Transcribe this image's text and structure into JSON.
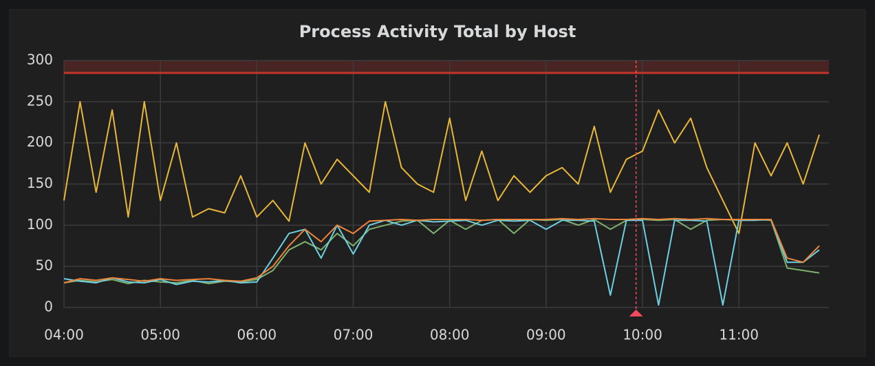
{
  "chart_data": {
    "type": "line",
    "title": "Process Activity Total by Host",
    "x": [
      "04:00",
      "04:10",
      "04:20",
      "04:30",
      "04:40",
      "04:50",
      "05:00",
      "05:10",
      "05:20",
      "05:30",
      "05:40",
      "05:50",
      "06:00",
      "06:10",
      "06:20",
      "06:30",
      "06:40",
      "06:50",
      "07:00",
      "07:10",
      "07:20",
      "07:30",
      "07:40",
      "07:50",
      "08:00",
      "08:10",
      "08:20",
      "08:30",
      "08:40",
      "08:50",
      "09:00",
      "09:10",
      "09:20",
      "09:30",
      "09:40",
      "09:50",
      "10:00",
      "10:10",
      "10:20",
      "10:30",
      "10:40",
      "10:50",
      "11:00",
      "11:10",
      "11:20",
      "11:30",
      "11:40",
      "11:50"
    ],
    "series": [
      {
        "color": "#eab839",
        "values": [
          130,
          250,
          140,
          240,
          110,
          250,
          130,
          200,
          110,
          120,
          115,
          160,
          110,
          130,
          105,
          200,
          150,
          180,
          160,
          140,
          250,
          170,
          150,
          140,
          230,
          130,
          190,
          130,
          160,
          140,
          160,
          170,
          150,
          220,
          140,
          180,
          190,
          240,
          200,
          230,
          170,
          130,
          90,
          200,
          160,
          200,
          150,
          210
        ]
      },
      {
        "color": "#7eb26d",
        "values": [
          30,
          33,
          31,
          34,
          29,
          33,
          31,
          30,
          33,
          29,
          32,
          31,
          34,
          45,
          70,
          80,
          70,
          90,
          75,
          95,
          100,
          105,
          106,
          90,
          106,
          95,
          106,
          107,
          90,
          107,
          106,
          107,
          100,
          107,
          95,
          106,
          107,
          106,
          107,
          95,
          106,
          107,
          106,
          107,
          106,
          48,
          45,
          42
        ]
      },
      {
        "color": "#6ed0e0",
        "values": [
          35,
          32,
          30,
          36,
          31,
          30,
          34,
          28,
          32,
          31,
          33,
          30,
          31,
          60,
          90,
          95,
          60,
          100,
          65,
          100,
          106,
          100,
          106,
          104,
          105,
          106,
          100,
          106,
          105,
          106,
          95,
          106,
          106,
          105,
          15,
          106,
          106,
          3,
          106,
          106,
          105,
          3,
          106,
          106,
          107,
          55,
          55,
          70
        ]
      },
      {
        "color": "#ef843c",
        "values": [
          30,
          35,
          33,
          36,
          34,
          32,
          35,
          33,
          34,
          35,
          33,
          32,
          36,
          50,
          75,
          95,
          80,
          100,
          90,
          105,
          106,
          107,
          106,
          107,
          107,
          107,
          106,
          107,
          107,
          107,
          107,
          108,
          107,
          108,
          107,
          107,
          108,
          107,
          108,
          107,
          108,
          107,
          107,
          107,
          107,
          60,
          55,
          75
        ]
      }
    ],
    "xlim": [
      "04:00",
      "11:56"
    ],
    "xticks": [
      "04:00",
      "05:00",
      "06:00",
      "07:00",
      "08:00",
      "09:00",
      "10:00",
      "11:00"
    ],
    "ylim": [
      0,
      300
    ],
    "yticks": [
      0,
      50,
      100,
      150,
      200,
      250,
      300
    ],
    "grid": true,
    "threshold": 285,
    "threshold_color": "#c4362b",
    "annotation_x": "09:56",
    "annotation_color": "#f2495c"
  }
}
